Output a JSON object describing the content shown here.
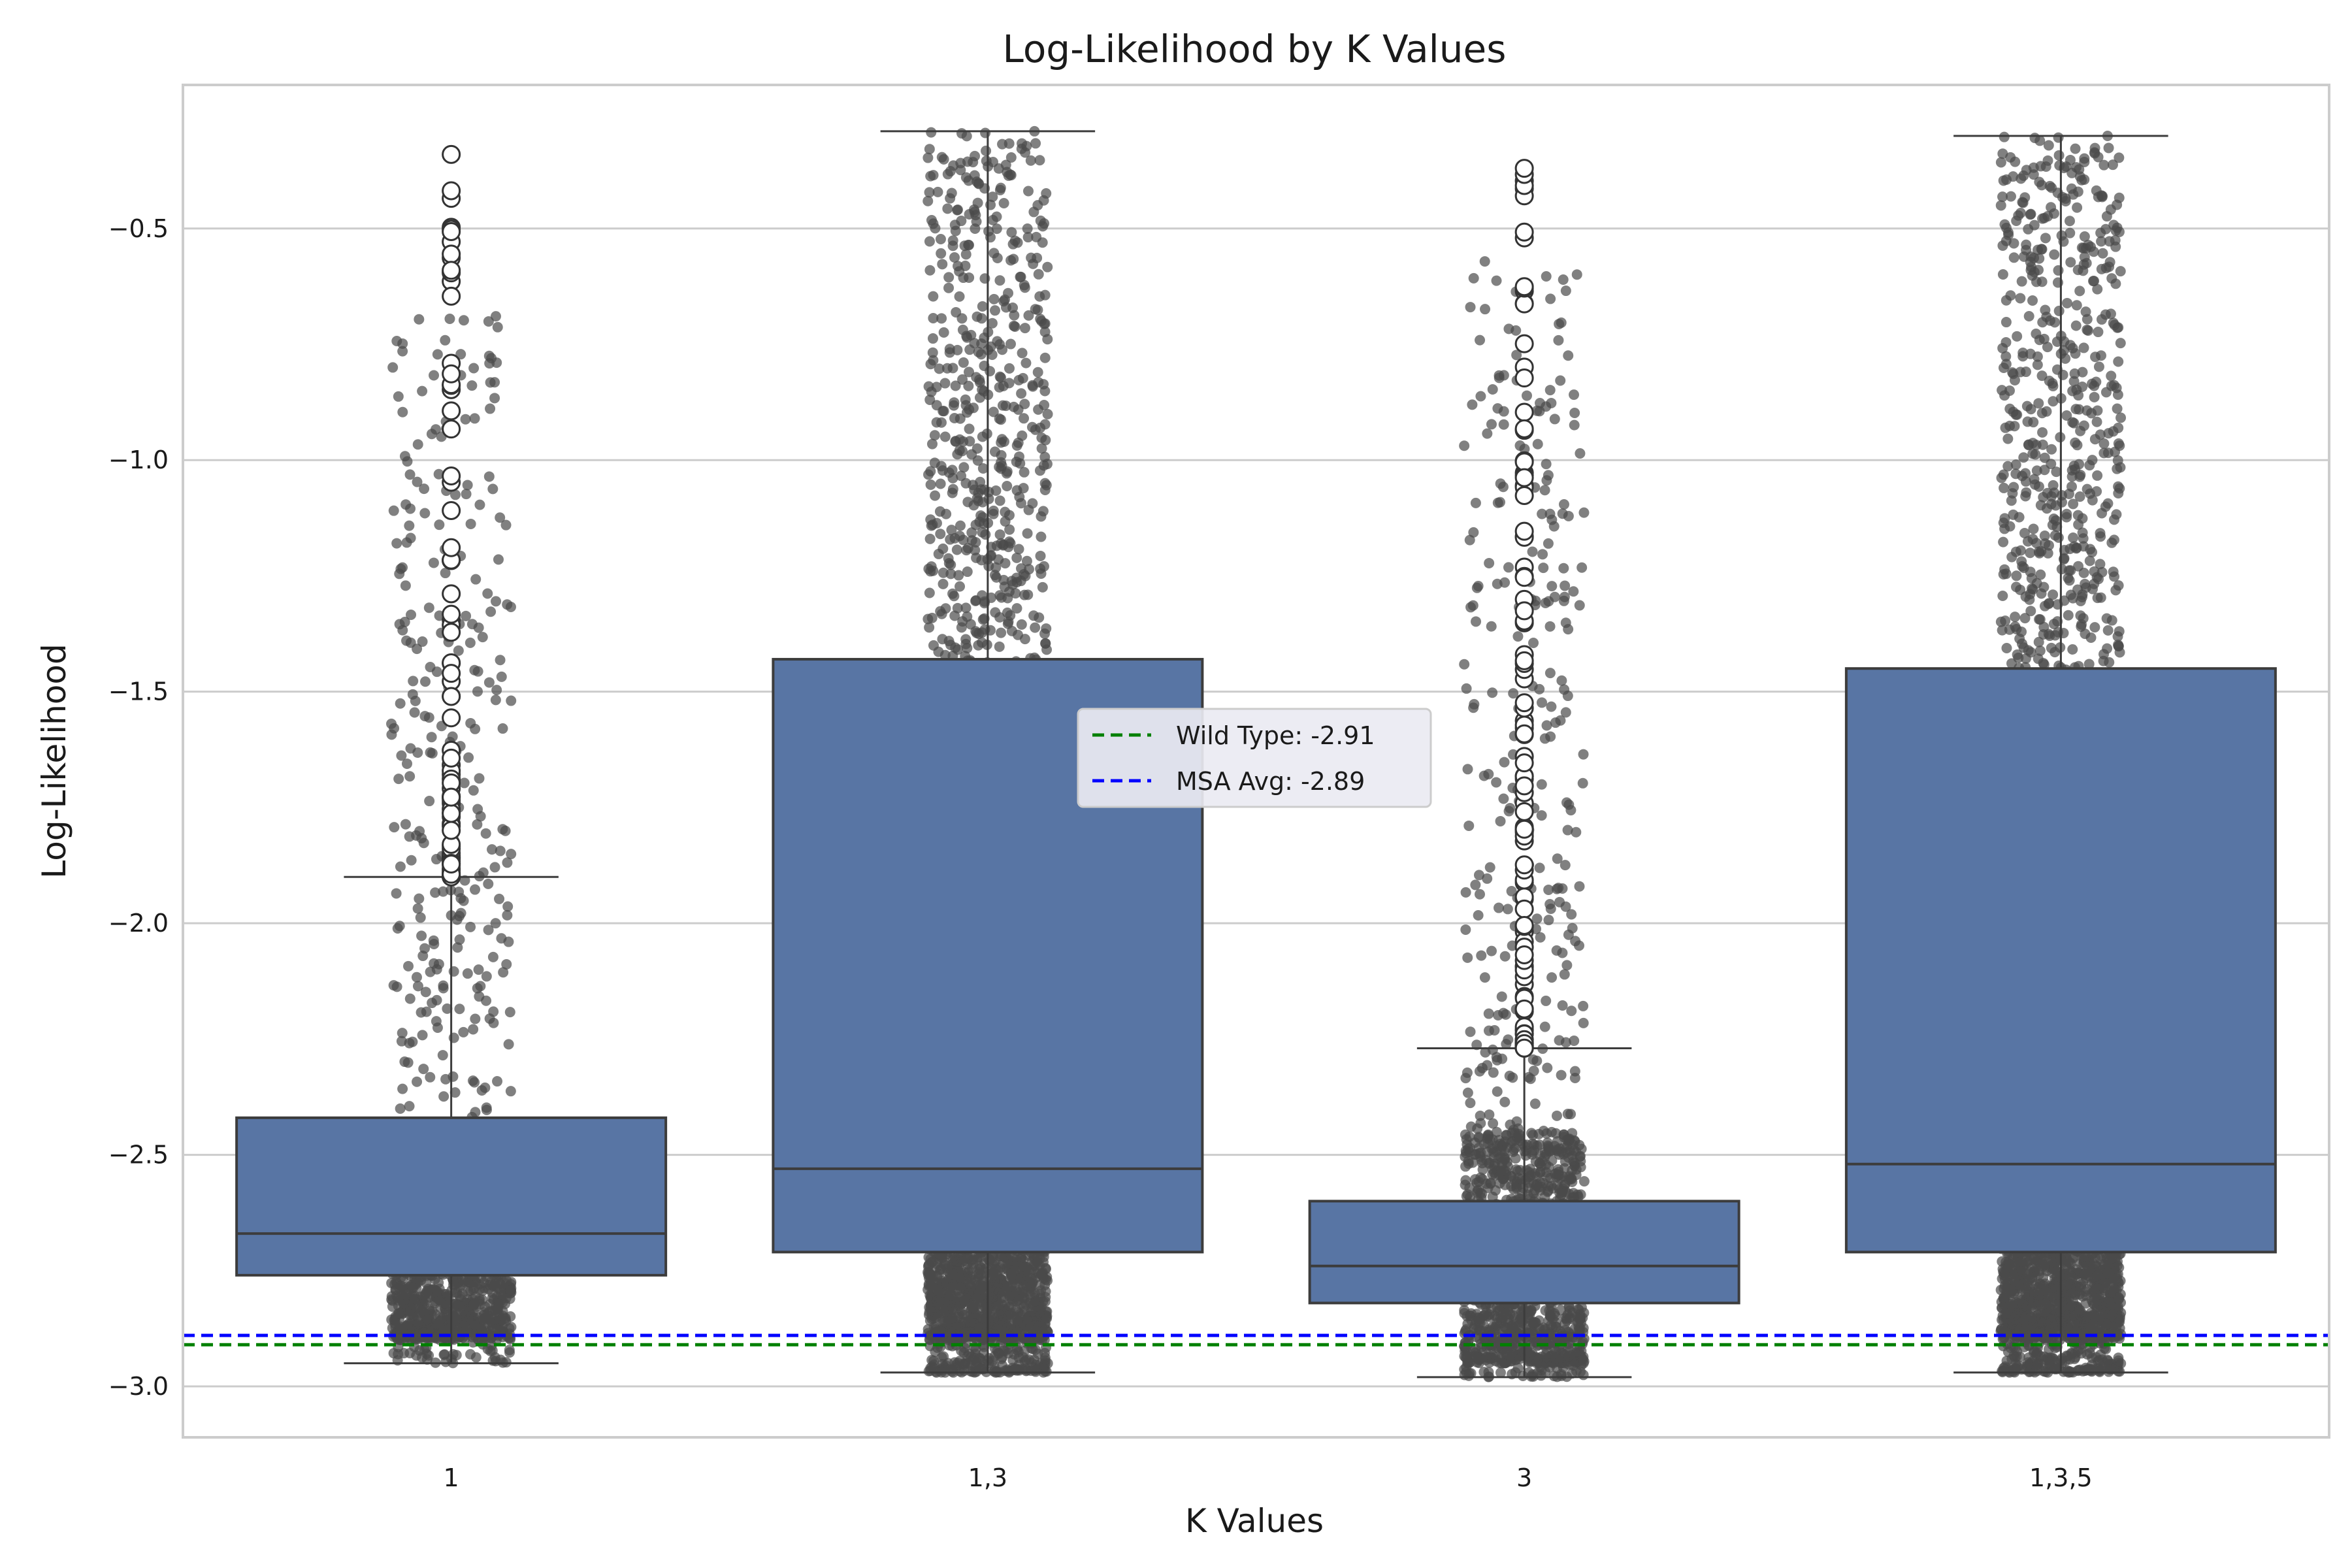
{
  "chart_data": {
    "type": "box",
    "title": "Log-Likelihood by K Values",
    "xlabel": "K Values",
    "ylabel": "Log-Likelihood",
    "ylim": [
      -3.11,
      -0.19
    ],
    "yticks": [
      -3.0,
      -2.5,
      -2.0,
      -1.5,
      -1.0,
      -0.5
    ],
    "ytick_labels": [
      "−3.0",
      "−2.5",
      "−2.0",
      "−1.5",
      "−1.0",
      "−0.5"
    ],
    "grid": true,
    "categories": [
      "1",
      "1,3",
      "3",
      "1,3,5"
    ],
    "boxes": [
      {
        "name": "1",
        "q1": -2.76,
        "median": -2.67,
        "q3": -2.42,
        "whisker_low": -2.95,
        "whisker_high": -1.9,
        "points_min": -2.95,
        "points_max": -0.34,
        "dense_low": -2.9,
        "dense_high": -2.52,
        "sparse_high": -0.68
      },
      {
        "name": "1,3",
        "q1": -2.71,
        "median": -2.53,
        "q3": -1.43,
        "whisker_low": -2.97,
        "whisker_high": -0.29,
        "points_min": -2.97,
        "points_max": -0.29,
        "dense_low": -2.9,
        "dense_high": -2.3,
        "sparse_high": -0.29
      },
      {
        "name": "3",
        "q1": -2.82,
        "median": -2.74,
        "q3": -2.6,
        "whisker_low": -2.98,
        "whisker_high": -2.27,
        "points_min": -2.98,
        "points_max": -0.37,
        "dense_low": -2.95,
        "dense_high": -2.45,
        "sparse_high": -0.57
      },
      {
        "name": "1,3,5",
        "q1": -2.71,
        "median": -2.52,
        "q3": -1.45,
        "whisker_low": -2.97,
        "whisker_high": -0.3,
        "points_min": -2.97,
        "points_max": -0.3,
        "dense_low": -2.9,
        "dense_high": -2.3,
        "sparse_high": -0.3
      }
    ],
    "reference_lines": [
      {
        "label": "Wild Type: -2.91",
        "value": -2.91,
        "color": "#008000",
        "style": "dashed"
      },
      {
        "label": "MSA Avg: -2.89",
        "value": -2.89,
        "color": "#0000ff",
        "style": "dashed"
      }
    ],
    "legend_position": "center",
    "colors": {
      "box_fill": "#5875a4",
      "box_edge": "#3c3c3c",
      "points": "#4a4a4a",
      "grid": "#cccccc",
      "frame": "#cccccc"
    }
  }
}
